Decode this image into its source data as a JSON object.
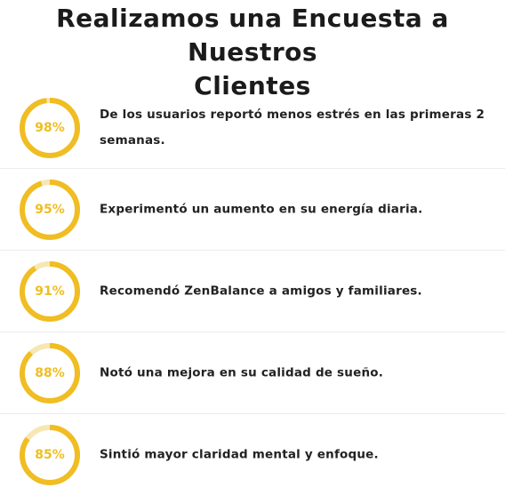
{
  "title_lines": [
    "Realizamos una Encuesta a Nuestros",
    "Clientes"
  ],
  "colors": {
    "accent": "#f0bd22",
    "track": "#f6e7b3",
    "text": "#222222",
    "divider": "#ececec"
  },
  "stats": [
    {
      "value": 98,
      "label": "98%",
      "text": "De los usuarios reportó menos estrés en las primeras 2 semanas."
    },
    {
      "value": 95,
      "label": "95%",
      "text": "Experimentó un aumento en su energía diaria."
    },
    {
      "value": 91,
      "label": "91%",
      "text": "Recomendó ZenBalance a amigos y familiares."
    },
    {
      "value": 88,
      "label": "88%",
      "text": "Notó una mejora en su calidad de sueño."
    },
    {
      "value": 85,
      "label": "85%",
      "text": "Sintió mayor claridad mental y enfoque."
    }
  ]
}
